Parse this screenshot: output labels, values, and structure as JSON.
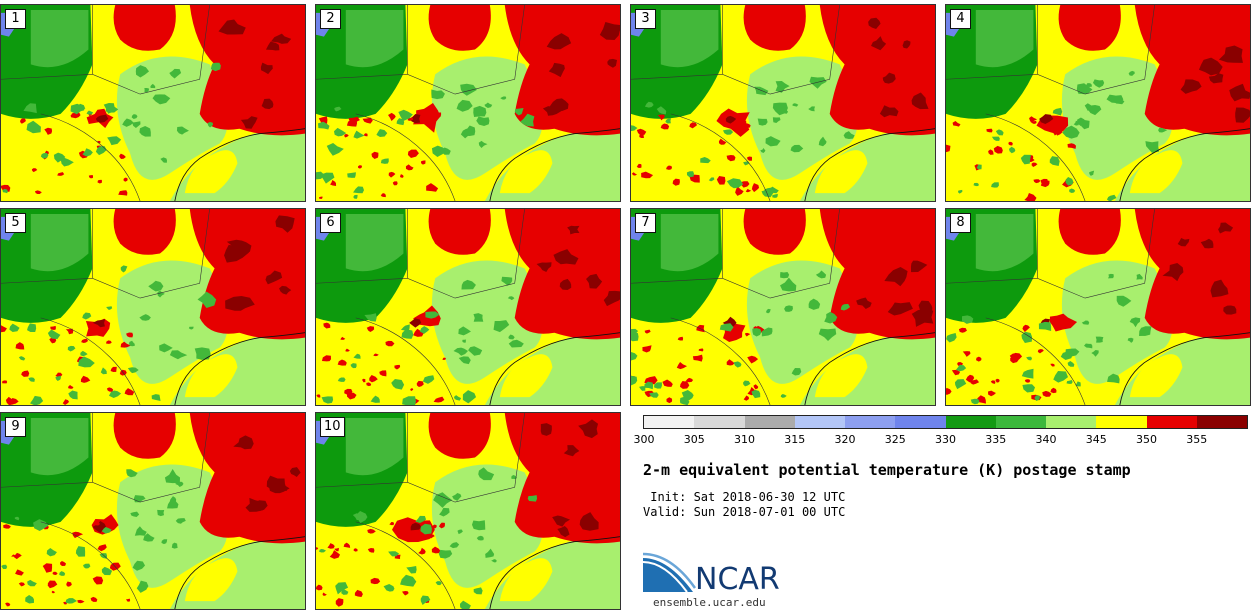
{
  "panels": [
    "1",
    "2",
    "3",
    "4",
    "5",
    "6",
    "7",
    "8",
    "9",
    "10"
  ],
  "colorbar": {
    "colors": [
      "#f2f2f2",
      "#d9d9d9",
      "#ababab",
      "#b3c6f7",
      "#8d9ff0",
      "#6f84ec",
      "#139a13",
      "#3cb83c",
      "#a8ef6e",
      "#ffff00",
      "#e60000",
      "#8a0000"
    ],
    "ticks": [
      "300",
      "305",
      "310",
      "315",
      "320",
      "325",
      "330",
      "335",
      "340",
      "345",
      "350",
      "355"
    ]
  },
  "title": "2-m equivalent potential temperature (K) postage stamp",
  "init": " Init: Sat 2018-06-30 12 UTC",
  "valid": "Valid: Sun 2018-07-01 00 UTC",
  "logo": {
    "name": "NCAR",
    "url": "ensemble.ucar.edu"
  },
  "palette": {
    "green_dark": "#0d9a0d",
    "green_mid": "#43b83a",
    "green_light": "#a8ef6e",
    "yellow": "#ffff00",
    "red": "#e60000",
    "red_dark": "#8a0000",
    "water": "#6f84ec"
  }
}
